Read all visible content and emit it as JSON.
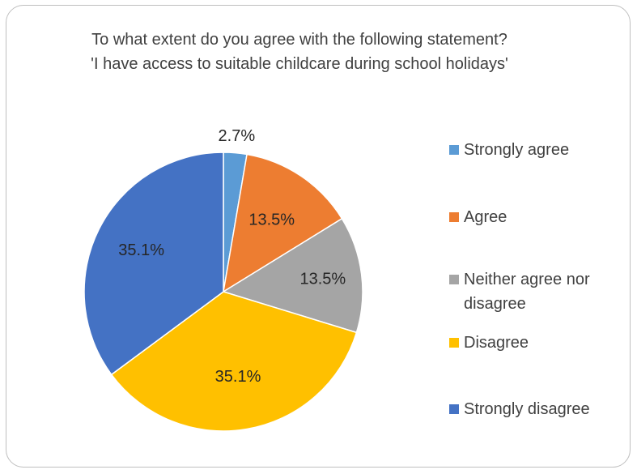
{
  "chart_data": {
    "type": "pie",
    "title": "To what extent do you agree with the following statement? 'I have access to suitable childcare during school holidays'",
    "categories": [
      "Strongly agree",
      "Agree",
      "Neither agree nor disagree",
      "Disagree",
      "Strongly disagree"
    ],
    "values": [
      2.7,
      13.5,
      13.5,
      35.1,
      35.1
    ],
    "labels": [
      "2.7%",
      "13.5%",
      "13.5%",
      "35.1%",
      "35.1%"
    ],
    "colors": [
      "#5b9bd5",
      "#ed7d31",
      "#a5a5a5",
      "#ffc000",
      "#4472c4"
    ],
    "legend_position": "right",
    "start_angle": "12 o'clock",
    "direction": "clockwise"
  }
}
